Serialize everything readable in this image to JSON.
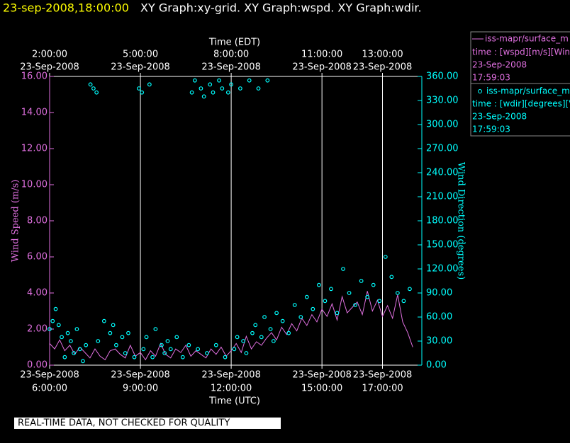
{
  "header": {
    "timestamp": "23-sep-2008,18:00:00",
    "graphs": "XY Graph:xy-grid.  XY Graph:wspd.  XY Graph:wdir."
  },
  "footer": "REAL-TIME DATA, NOT CHECKED FOR QUALITY",
  "chart_data": {
    "type": "line",
    "xlabel": "Time (UTC)",
    "x2label": "Time (EDT)",
    "ylabel": "Wind Speed (m/s)",
    "y2label": "Wind Direction (degrees)",
    "xlim": [
      6,
      18.3
    ],
    "ylim": [
      0,
      16
    ],
    "y2lim": [
      0,
      360
    ],
    "grid": true,
    "xticks": [
      {
        "value": 6,
        "label": [
          "23-Sep-2008",
          "6:00:00"
        ]
      },
      {
        "value": 9,
        "label": [
          "23-Sep-2008",
          "9:00:00"
        ]
      },
      {
        "value": 12,
        "label": [
          "23-Sep-2008",
          "12:00:00"
        ]
      },
      {
        "value": 15,
        "label": [
          "23-Sep-2008",
          "15:00:00"
        ]
      },
      {
        "value": 17,
        "label": [
          "23-Sep-2008",
          "17:00:00"
        ]
      }
    ],
    "x2ticks": [
      {
        "value": 6,
        "label": [
          "2:00:00",
          "23-Sep-2008"
        ]
      },
      {
        "value": 9,
        "label": [
          "5:00:00",
          "23-Sep-2008"
        ]
      },
      {
        "value": 12,
        "label": [
          "8:00:00",
          "23-Sep-2008"
        ]
      },
      {
        "value": 15,
        "label": [
          "11:00:00",
          "23-Sep-2008"
        ]
      },
      {
        "value": 17,
        "label": [
          "13:00:00",
          "23-Sep-2008"
        ]
      }
    ],
    "yticks": [
      {
        "value": 0,
        "label": "0.00"
      },
      {
        "value": 2,
        "label": "2.00"
      },
      {
        "value": 4,
        "label": "4.00"
      },
      {
        "value": 6,
        "label": "6.00"
      },
      {
        "value": 8,
        "label": "8.00"
      },
      {
        "value": 10,
        "label": "10.00"
      },
      {
        "value": 12,
        "label": "12.00"
      },
      {
        "value": 14,
        "label": "14.00"
      },
      {
        "value": 16,
        "label": "16.00"
      }
    ],
    "y2ticks": [
      {
        "value": 0,
        "label": "0.00"
      },
      {
        "value": 30,
        "label": "30.00"
      },
      {
        "value": 60,
        "label": "60.00"
      },
      {
        "value": 90,
        "label": "90.00"
      },
      {
        "value": 120,
        "label": "120.00"
      },
      {
        "value": 150,
        "label": "150.00"
      },
      {
        "value": 180,
        "label": "180.00"
      },
      {
        "value": 210,
        "label": "210.00"
      },
      {
        "value": 240,
        "label": "240.00"
      },
      {
        "value": 270,
        "label": "270.00"
      },
      {
        "value": 300,
        "label": "300.00"
      },
      {
        "value": 330,
        "label": "330.00"
      },
      {
        "value": 360,
        "label": "360.00"
      }
    ],
    "series": [
      {
        "name": "iss-mapr/surface_m",
        "legend_text": "time : [wspd][m/s][Win",
        "date": "23-Sep-2008",
        "time": "17:59:03",
        "type": "line",
        "color": "#e070e0",
        "x": [
          6.0,
          6.1667,
          6.3333,
          6.5,
          6.6667,
          6.8333,
          7.0,
          7.1667,
          7.3333,
          7.5,
          7.6667,
          7.8333,
          8.0,
          8.1667,
          8.3333,
          8.5,
          8.6667,
          8.8333,
          9.0,
          9.1667,
          9.3333,
          9.5,
          9.6667,
          9.8333,
          10.0,
          10.1667,
          10.3333,
          10.5,
          10.6667,
          10.8333,
          11.0,
          11.1667,
          11.3333,
          11.5,
          11.6667,
          11.8333,
          12.0,
          12.1667,
          12.3333,
          12.5,
          12.6667,
          12.8333,
          13.0,
          13.1667,
          13.3333,
          13.5,
          13.6667,
          13.8333,
          14.0,
          14.1667,
          14.3333,
          14.5,
          14.6667,
          14.8333,
          15.0,
          15.1667,
          15.3333,
          15.5,
          15.6667,
          15.8333,
          16.0,
          16.1667,
          16.3333,
          16.5,
          16.6667,
          16.8333,
          17.0,
          17.1667,
          17.3333,
          17.5,
          17.6667,
          17.8333,
          18.0
        ],
        "values": [
          1.2,
          0.9,
          1.4,
          0.8,
          1.1,
          0.6,
          1.0,
          0.7,
          0.4,
          0.9,
          0.5,
          0.3,
          0.8,
          0.9,
          0.6,
          0.4,
          1.1,
          0.5,
          0.7,
          0.3,
          0.8,
          0.5,
          1.2,
          0.6,
          0.4,
          0.9,
          0.7,
          1.1,
          0.5,
          0.8,
          0.6,
          0.4,
          0.9,
          0.6,
          1.0,
          0.5,
          0.8,
          1.2,
          0.7,
          1.6,
          0.9,
          1.3,
          1.1,
          1.5,
          1.8,
          1.4,
          2.1,
          1.7,
          2.3,
          1.9,
          2.6,
          2.2,
          2.8,
          2.4,
          3.1,
          2.7,
          3.4,
          2.5,
          3.8,
          2.9,
          3.2,
          3.5,
          2.8,
          4.1,
          3.0,
          3.6,
          2.7,
          3.3,
          2.6,
          3.9,
          2.4,
          1.8,
          1.0
        ]
      },
      {
        "name": "iss-mapr/surface_m",
        "legend_text": "time : [wdir][degrees][V",
        "date": "23-Sep-2008",
        "time": "17:59:03",
        "type": "scatter",
        "color": "#00ffff",
        "axis": "y2",
        "x": [
          6.0,
          6.1,
          6.2,
          6.3,
          6.4,
          6.5,
          6.6,
          6.7,
          6.8,
          6.9,
          7.0,
          7.1,
          7.2,
          7.35,
          7.45,
          7.55,
          7.6,
          7.8,
          8.0,
          8.1,
          8.2,
          8.4,
          8.5,
          8.6,
          8.8,
          8.95,
          9.05,
          9.1,
          9.2,
          9.3,
          9.4,
          9.5,
          9.7,
          9.8,
          9.9,
          10.0,
          10.2,
          10.4,
          10.6,
          10.7,
          10.8,
          10.9,
          11.0,
          11.1,
          11.2,
          11.3,
          11.4,
          11.5,
          11.6,
          11.7,
          11.8,
          11.9,
          12.0,
          12.1,
          12.2,
          12.3,
          12.4,
          12.5,
          12.6,
          12.7,
          12.8,
          12.9,
          13.0,
          13.1,
          13.2,
          13.3,
          13.4,
          13.5,
          13.7,
          13.9,
          14.1,
          14.3,
          14.5,
          14.7,
          14.9,
          15.1,
          15.3,
          15.5,
          15.7,
          15.9,
          16.1,
          16.3,
          16.5,
          16.7,
          16.9,
          17.1,
          17.3,
          17.5,
          17.7,
          17.9
        ],
        "values": [
          45,
          55,
          70,
          50,
          35,
          10,
          40,
          30,
          15,
          45,
          20,
          5,
          25,
          350,
          345,
          340,
          30,
          55,
          40,
          50,
          25,
          35,
          15,
          40,
          10,
          345,
          340,
          20,
          35,
          350,
          10,
          45,
          25,
          15,
          30,
          20,
          35,
          10,
          25,
          340,
          355,
          20,
          345,
          335,
          15,
          350,
          340,
          25,
          355,
          345,
          10,
          340,
          350,
          20,
          35,
          345,
          30,
          15,
          355,
          40,
          50,
          345,
          35,
          60,
          355,
          45,
          30,
          65,
          55,
          40,
          75,
          60,
          85,
          70,
          100,
          80,
          95,
          65,
          120,
          90,
          75,
          105,
          85,
          100,
          80,
          135,
          110,
          90,
          80,
          95
        ]
      }
    ]
  }
}
